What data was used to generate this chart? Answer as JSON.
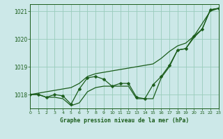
{
  "title": "Graphe pression niveau de la mer (hPa)",
  "bg_color": "#cce8e8",
  "grid_color": "#99ccbb",
  "line_color": "#1a5c1a",
  "x_min": 0,
  "x_max": 23,
  "y_min": 1017.5,
  "y_max": 1021.25,
  "y_ticks": [
    1018,
    1019,
    1020,
    1021
  ],
  "x_ticks": [
    0,
    1,
    2,
    3,
    4,
    5,
    6,
    7,
    8,
    9,
    10,
    11,
    12,
    13,
    14,
    15,
    16,
    17,
    18,
    19,
    20,
    21,
    22,
    23
  ],
  "line_actual": [
    1018.0,
    1018.0,
    1017.9,
    1018.0,
    1017.95,
    1017.65,
    1018.2,
    1018.6,
    1018.65,
    1018.55,
    1018.3,
    1018.4,
    1018.4,
    1017.9,
    1017.85,
    1018.35,
    1018.65,
    1019.05,
    1019.6,
    1019.65,
    1020.1,
    1020.35,
    1021.05,
    1021.1
  ],
  "line_max": [
    1018.0,
    1018.05,
    1018.1,
    1018.15,
    1018.2,
    1018.25,
    1018.4,
    1018.65,
    1018.75,
    1018.8,
    1018.85,
    1018.9,
    1018.95,
    1019.0,
    1019.05,
    1019.1,
    1019.3,
    1019.55,
    1019.75,
    1019.85,
    1020.1,
    1020.55,
    1021.0,
    1021.1
  ],
  "line_min": [
    1018.0,
    1018.0,
    1017.9,
    1017.9,
    1017.85,
    1017.6,
    1017.7,
    1018.1,
    1018.25,
    1018.3,
    1018.3,
    1018.3,
    1018.3,
    1017.85,
    1017.85,
    1017.85,
    1018.6,
    1019.0,
    1019.6,
    1019.65,
    1020.05,
    1020.35,
    1021.05,
    1021.1
  ],
  "marker_size": 2.5,
  "linewidth": 0.9
}
